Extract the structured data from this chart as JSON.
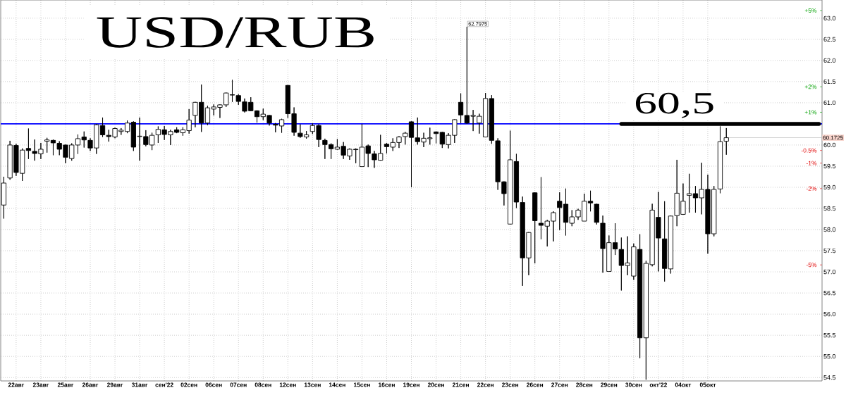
{
  "chart_data": {
    "type": "candlestick",
    "title": "USD/RUB",
    "color": "#000000",
    "categories": [
      null,
      null,
      "22авг",
      null,
      null,
      null,
      "23авг",
      null,
      null,
      null,
      "25авг",
      null,
      null,
      null,
      "26авг",
      null,
      null,
      null,
      "29авг",
      null,
      null,
      null,
      "31авг",
      null,
      null,
      null,
      "сен'22",
      null,
      null,
      null,
      "02сен",
      null,
      null,
      null,
      "06сен",
      null,
      null,
      null,
      "07сен",
      null,
      null,
      null,
      "08сен",
      null,
      null,
      null,
      "12сен",
      null,
      null,
      null,
      "13сен",
      null,
      null,
      null,
      "14сен",
      null,
      null,
      null,
      "15сен",
      null,
      null,
      null,
      "16сен",
      null,
      null,
      null,
      "19сен",
      null,
      null,
      null,
      "20сен",
      null,
      null,
      null,
      "21сен",
      null,
      null,
      null,
      "22сен",
      null,
      null,
      null,
      "23сен",
      null,
      null,
      null,
      "26сен",
      null,
      null,
      null,
      "27сен",
      null,
      null,
      null,
      "28сен",
      null,
      null,
      null,
      "29сен",
      null,
      null,
      null,
      "30сен",
      null,
      null,
      null,
      "окт'22",
      null,
      null,
      null,
      "04окт",
      null,
      null,
      null,
      "05окт",
      null,
      null,
      null,
      null,
      null,
      null,
      null,
      null,
      null,
      null,
      null,
      null,
      null,
      null,
      null,
      null,
      null,
      null
    ],
    "ohlc": [
      [
        58.58,
        59.25,
        58.26,
        59.1
      ],
      [
        59.22,
        60.1,
        59.18,
        60.0
      ],
      [
        59.99,
        60.03,
        59.27,
        59.35
      ],
      [
        59.33,
        59.92,
        59.15,
        59.88
      ],
      [
        59.92,
        60.39,
        59.67,
        59.87
      ],
      [
        59.85,
        60.13,
        59.63,
        59.8
      ],
      [
        59.79,
        60.05,
        59.67,
        59.9
      ],
      [
        60.09,
        60.17,
        59.82,
        60.12
      ],
      [
        60.11,
        60.13,
        59.76,
        60.05
      ],
      [
        60.04,
        60.09,
        59.76,
        59.9
      ],
      [
        60.0,
        60.01,
        59.57,
        59.71
      ],
      [
        59.68,
        60.04,
        59.63,
        60.0
      ],
      [
        60.0,
        60.25,
        59.79,
        60.15
      ],
      [
        60.19,
        60.32,
        59.94,
        60.12
      ],
      [
        60.11,
        60.16,
        59.86,
        59.93
      ],
      [
        59.93,
        60.5,
        59.79,
        60.48
      ],
      [
        60.46,
        60.65,
        60.19,
        60.24
      ],
      [
        60.23,
        60.36,
        60.08,
        60.2
      ],
      [
        60.19,
        60.41,
        60.16,
        60.39
      ],
      [
        60.32,
        60.4,
        60.24,
        60.35
      ],
      [
        60.32,
        60.58,
        60.28,
        60.52
      ],
      [
        60.54,
        60.56,
        59.86,
        59.95
      ],
      [
        60.2,
        60.65,
        59.63,
        60.21
      ],
      [
        60.2,
        60.35,
        59.97,
        60.01
      ],
      [
        60.0,
        60.29,
        59.88,
        60.23
      ],
      [
        60.24,
        60.44,
        60.05,
        60.37
      ],
      [
        60.36,
        60.45,
        60.12,
        60.25
      ],
      [
        60.24,
        60.36,
        60.0,
        60.32
      ],
      [
        60.36,
        60.42,
        60.28,
        60.3
      ],
      [
        60.29,
        60.42,
        60.22,
        60.36
      ],
      [
        60.34,
        60.85,
        60.27,
        60.59
      ],
      [
        60.7,
        61.02,
        60.42,
        61.01
      ],
      [
        61.01,
        61.43,
        60.31,
        60.52
      ],
      [
        60.52,
        60.93,
        60.47,
        60.88
      ],
      [
        60.85,
        60.96,
        60.7,
        60.9
      ],
      [
        60.89,
        60.96,
        60.64,
        60.95
      ],
      [
        60.95,
        61.24,
        60.9,
        61.23
      ],
      [
        61.19,
        61.54,
        61.02,
        61.18
      ],
      [
        61.17,
        61.2,
        60.95,
        61.03
      ],
      [
        61.02,
        61.1,
        60.77,
        60.8
      ],
      [
        61.01,
        61.13,
        60.8,
        60.81
      ],
      [
        60.81,
        60.82,
        60.53,
        60.67
      ],
      [
        60.67,
        60.86,
        60.59,
        60.73
      ],
      [
        60.7,
        60.71,
        60.46,
        60.52
      ],
      [
        60.49,
        60.52,
        60.3,
        60.47
      ],
      [
        60.45,
        60.62,
        60.29,
        60.6
      ],
      [
        61.41,
        61.42,
        60.64,
        60.74
      ],
      [
        60.74,
        60.89,
        60.22,
        60.3
      ],
      [
        60.28,
        60.49,
        60.17,
        60.2
      ],
      [
        60.19,
        60.33,
        60.15,
        60.24
      ],
      [
        60.32,
        60.51,
        60.26,
        60.46
      ],
      [
        60.46,
        60.49,
        59.95,
        60.13
      ],
      [
        60.11,
        60.15,
        59.67,
        60.01
      ],
      [
        60.01,
        60.04,
        59.67,
        59.91
      ],
      [
        59.9,
        60.14,
        59.89,
        59.95
      ],
      [
        59.97,
        60.07,
        59.67,
        59.76
      ],
      [
        59.74,
        59.92,
        59.65,
        59.9
      ],
      [
        59.89,
        59.92,
        59.57,
        59.9
      ],
      [
        59.49,
        60.5,
        59.49,
        59.95
      ],
      [
        59.98,
        60.01,
        59.48,
        59.8
      ],
      [
        59.79,
        59.86,
        59.46,
        59.65
      ],
      [
        59.64,
        60.24,
        59.63,
        59.8
      ],
      [
        60.02,
        60.05,
        59.8,
        59.96
      ],
      [
        59.95,
        60.16,
        59.86,
        60.06
      ],
      [
        60.06,
        60.21,
        59.93,
        60.19
      ],
      [
        60.2,
        60.31,
        60.01,
        60.28
      ],
      [
        60.55,
        60.56,
        59.0,
        60.18
      ],
      [
        60.17,
        60.65,
        60.01,
        60.08
      ],
      [
        60.07,
        60.29,
        59.95,
        60.16
      ],
      [
        60.15,
        60.41,
        60.01,
        60.17
      ],
      [
        60.31,
        60.32,
        60.04,
        60.27
      ],
      [
        60.3,
        60.31,
        59.93,
        60.02
      ],
      [
        60.01,
        60.28,
        59.92,
        60.23
      ],
      [
        60.23,
        60.61,
        60.05,
        60.6
      ],
      [
        61.01,
        61.22,
        60.52,
        60.71
      ],
      [
        60.7,
        62.7975,
        60.5,
        60.52
      ],
      [
        60.68,
        60.83,
        60.33,
        60.7
      ],
      [
        60.52,
        60.74,
        60.27,
        60.68
      ],
      [
        60.19,
        61.23,
        60.19,
        61.1
      ],
      [
        61.1,
        61.18,
        60.03,
        60.11
      ],
      [
        60.1,
        60.16,
        58.94,
        59.13
      ],
      [
        59.13,
        59.14,
        58.57,
        58.85
      ],
      [
        58.13,
        60.34,
        58.12,
        59.65
      ],
      [
        59.61,
        59.79,
        58.51,
        58.65
      ],
      [
        58.64,
        58.78,
        56.67,
        57.33
      ],
      [
        57.33,
        57.94,
        56.92,
        57.93
      ],
      [
        58.87,
        58.88,
        57.2,
        58.21
      ],
      [
        58.15,
        59.24,
        57.77,
        58.1
      ],
      [
        58.08,
        58.23,
        57.6,
        58.2
      ],
      [
        58.2,
        58.43,
        57.72,
        58.4
      ],
      [
        58.67,
        58.88,
        57.99,
        58.52
      ],
      [
        58.6,
        58.97,
        57.86,
        58.17
      ],
      [
        58.15,
        58.46,
        58.08,
        58.3
      ],
      [
        58.3,
        58.49,
        58.23,
        58.46
      ],
      [
        58.2,
        58.85,
        58.2,
        58.67
      ],
      [
        58.67,
        58.92,
        58.43,
        58.63
      ],
      [
        58.6,
        58.61,
        58.12,
        58.17
      ],
      [
        58.15,
        58.33,
        56.98,
        57.55
      ],
      [
        57.01,
        57.86,
        57.01,
        57.69
      ],
      [
        57.69,
        58.15,
        57.4,
        57.54
      ],
      [
        57.53,
        57.81,
        56.56,
        57.15
      ],
      [
        57.15,
        57.84,
        56.92,
        57.21
      ],
      [
        56.9,
        57.67,
        56.81,
        57.59
      ],
      [
        57.53,
        57.89,
        54.96,
        55.44
      ],
      [
        55.44,
        57.26,
        54.45,
        57.2
      ],
      [
        57.17,
        58.61,
        57.13,
        58.46
      ],
      [
        58.29,
        58.89,
        57.01,
        57.8
      ],
      [
        57.78,
        58.67,
        56.77,
        57.08
      ],
      [
        57.07,
        58.33,
        56.96,
        58.32
      ],
      [
        58.33,
        59.65,
        58.08,
        58.86
      ],
      [
        58.36,
        59.09,
        58.35,
        58.67
      ],
      [
        58.81,
        59.32,
        58.4,
        58.85
      ],
      [
        58.85,
        59.03,
        58.4,
        58.75
      ],
      [
        58.75,
        59.58,
        58.36,
        58.95
      ],
      [
        58.95,
        59.3,
        57.43,
        57.9
      ],
      [
        57.9,
        59.03,
        57.84,
        58.95
      ],
      [
        58.96,
        60.44,
        58.86,
        60.08
      ],
      [
        60.09,
        60.4,
        59.77,
        60.1725
      ],
      null,
      null,
      null,
      null,
      null,
      null,
      null,
      null,
      null,
      null,
      null,
      null,
      null,
      null,
      null
    ],
    "series": [
      {
        "type": "line",
        "color": "#000000",
        "values": [
          null,
          null,
          null,
          null,
          null,
          null,
          null,
          null,
          null,
          null,
          null,
          null,
          null,
          null,
          null,
          null,
          null,
          null,
          null,
          null,
          null,
          null,
          null,
          null,
          null,
          null,
          null,
          null,
          null,
          null,
          null,
          null,
          null,
          null,
          null,
          null,
          null,
          null,
          null,
          null,
          null,
          null,
          null,
          null,
          null,
          null,
          null,
          null,
          null,
          null,
          null,
          null,
          null,
          null,
          null,
          null,
          null,
          null,
          null,
          null,
          null,
          null,
          null,
          null,
          null,
          null,
          null,
          null,
          null,
          null,
          null,
          null,
          null,
          null,
          null,
          null,
          null,
          null,
          null,
          null,
          null,
          null,
          null,
          null,
          null,
          null,
          null,
          null,
          null,
          null,
          null,
          null,
          null,
          null,
          null,
          null,
          null,
          null,
          null,
          null,
          60.5,
          60.5,
          60.5,
          60.5,
          60.5,
          60.5,
          60.5,
          60.5,
          60.5,
          60.5,
          60.5,
          60.5,
          60.5,
          60.5,
          60.5,
          60.5,
          60.5,
          60.5,
          60.5,
          60.5,
          60.5,
          60.5,
          60.5,
          60.5,
          60.5,
          60.5,
          60.5,
          60.5,
          60.5,
          60.5,
          60.5,
          60.5,
          60.5
        ]
      }
    ],
    "ylim": [
      54.42,
      63.43
    ],
    "yticks": [
      54.5,
      {
        "value": 55,
        "label": "55.0"
      },
      55.5,
      {
        "value": 56,
        "label": "56.0"
      },
      56.5,
      {
        "value": 57,
        "label": "57.0"
      },
      57.5,
      {
        "value": 58,
        "label": "58.0"
      },
      58.5,
      {
        "value": 59,
        "label": "59.0"
      },
      59.5,
      {
        "value": 60,
        "label": "60.0"
      },
      {
        "value": 61,
        "label": "61.0"
      },
      61.5,
      {
        "value": 62,
        "label": "62.0"
      },
      62.5,
      {
        "value": 63,
        "label": "63.0"
      }
    ],
    "y2lim": [
      -9.56,
      5.413
    ],
    "y2ticks": [
      {
        "value": 5,
        "label": "+5%"
      },
      {
        "value": 2,
        "label": "+2%"
      },
      {
        "value": 1,
        "label": "+1%"
      },
      {
        "value": -0.5,
        "label": "-0.5%"
      },
      {
        "value": -1,
        "label": "-1%"
      },
      {
        "value": -2,
        "label": "-2%"
      },
      {
        "value": -5,
        "label": "-5%"
      }
    ],
    "grid": true,
    "ref_lines": [
      {
        "axis": "y",
        "value": 60.5,
        "color": "#0000ff"
      },
      {
        "axis": "y",
        "value": 60.1725,
        "label": "60.1725",
        "color": "#c0c0c0"
      }
    ],
    "annotations": [
      {
        "text": "60,5",
        "y": 60.5
      },
      "62.7975"
    ]
  }
}
